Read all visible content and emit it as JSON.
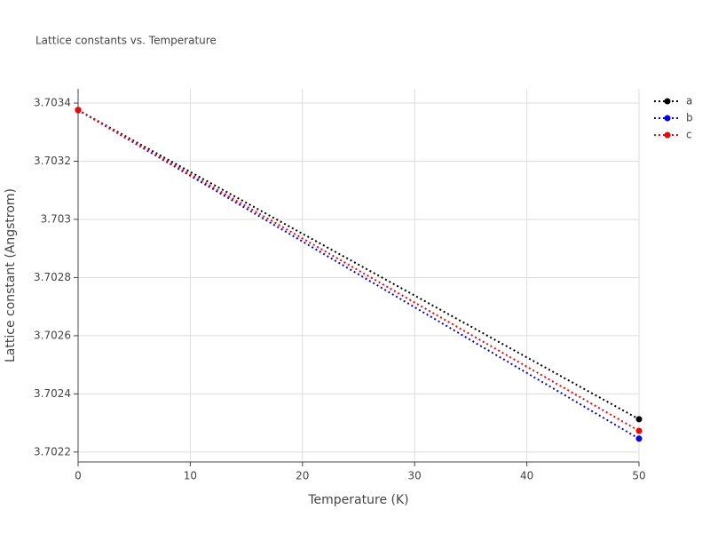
{
  "chart_data": {
    "type": "line",
    "title": "Lattice constants vs. Temperature",
    "x_label": "Temperature (K)",
    "y_label": "Lattice constant (Angstrom)",
    "x": [
      0,
      50
    ],
    "series": [
      {
        "name": "a",
        "color": "#000000",
        "values": [
          3.703376,
          3.702313
        ]
      },
      {
        "name": "b",
        "color": "#0000ff",
        "values": [
          3.703376,
          3.702246
        ]
      },
      {
        "name": "c",
        "color": "#ff0000",
        "values": [
          3.703376,
          3.702273
        ]
      }
    ],
    "xlim": [
      0,
      50
    ],
    "xticks": [
      0,
      10,
      20,
      30,
      40,
      50
    ],
    "ylim": [
      3.702166,
      3.703449
    ],
    "yticks": [
      3.7022,
      3.7024,
      3.7026,
      3.7028,
      3.703,
      3.7032,
      3.7034
    ],
    "grid": true,
    "legend": "top-right"
  }
}
